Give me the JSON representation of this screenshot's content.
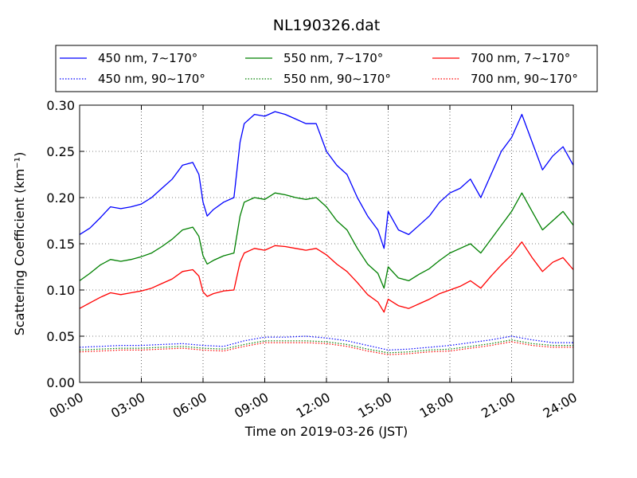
{
  "chart_data": {
    "type": "line",
    "title": "NL190326.dat",
    "xlabel": "Time on 2019-03-26 (JST)",
    "ylabel": "Scattering Coefficient (km⁻¹)",
    "x_ticks": [
      "00:00",
      "03:00",
      "06:00",
      "09:00",
      "12:00",
      "15:00",
      "18:00",
      "21:00",
      "24:00"
    ],
    "y_ticks": [
      "0.00",
      "0.05",
      "0.10",
      "0.15",
      "0.20",
      "0.25",
      "0.30"
    ],
    "xlim": [
      0,
      24
    ],
    "ylim": [
      0.0,
      0.3
    ],
    "x_unit": "hours",
    "grid": true,
    "legend_position": "top",
    "series": [
      {
        "name": "450 nm, 7∼170°",
        "color": "#0000ff",
        "linestyle": "solid",
        "x": [
          0,
          0.5,
          1,
          1.5,
          2,
          2.5,
          3,
          3.5,
          4,
          4.5,
          5,
          5.5,
          5.8,
          6,
          6.2,
          6.5,
          7,
          7.5,
          7.8,
          8,
          8.5,
          9,
          9.5,
          10,
          10.5,
          11,
          11.5,
          12,
          12.5,
          13,
          13.5,
          14,
          14.5,
          14.8,
          15,
          15.5,
          16,
          16.5,
          17,
          17.5,
          18,
          18.5,
          19,
          19.5,
          20,
          20.5,
          21,
          21.5,
          22,
          22.5,
          23,
          23.5,
          24
        ],
        "y": [
          0.16,
          0.167,
          0.178,
          0.19,
          0.188,
          0.19,
          0.193,
          0.2,
          0.21,
          0.22,
          0.235,
          0.238,
          0.225,
          0.195,
          0.18,
          0.187,
          0.195,
          0.2,
          0.26,
          0.28,
          0.29,
          0.288,
          0.293,
          0.29,
          0.285,
          0.28,
          0.28,
          0.25,
          0.235,
          0.225,
          0.2,
          0.18,
          0.165,
          0.145,
          0.185,
          0.165,
          0.16,
          0.17,
          0.18,
          0.195,
          0.205,
          0.21,
          0.22,
          0.2,
          0.225,
          0.25,
          0.265,
          0.29,
          0.26,
          0.23,
          0.245,
          0.255,
          0.235
        ]
      },
      {
        "name": "550 nm, 7∼170°",
        "color": "#008000",
        "linestyle": "solid",
        "x": [
          0,
          0.5,
          1,
          1.5,
          2,
          2.5,
          3,
          3.5,
          4,
          4.5,
          5,
          5.5,
          5.8,
          6,
          6.2,
          6.5,
          7,
          7.5,
          7.8,
          8,
          8.5,
          9,
          9.5,
          10,
          10.5,
          11,
          11.5,
          12,
          12.5,
          13,
          13.5,
          14,
          14.5,
          14.8,
          15,
          15.5,
          16,
          16.5,
          17,
          17.5,
          18,
          18.5,
          19,
          19.5,
          20,
          20.5,
          21,
          21.5,
          22,
          22.5,
          23,
          23.5,
          24
        ],
        "y": [
          0.11,
          0.118,
          0.127,
          0.133,
          0.131,
          0.133,
          0.136,
          0.14,
          0.147,
          0.155,
          0.165,
          0.168,
          0.158,
          0.137,
          0.128,
          0.132,
          0.137,
          0.14,
          0.18,
          0.195,
          0.2,
          0.198,
          0.205,
          0.203,
          0.2,
          0.198,
          0.2,
          0.19,
          0.175,
          0.165,
          0.145,
          0.128,
          0.118,
          0.102,
          0.125,
          0.113,
          0.11,
          0.117,
          0.123,
          0.132,
          0.14,
          0.145,
          0.15,
          0.14,
          0.155,
          0.17,
          0.185,
          0.205,
          0.185,
          0.165,
          0.175,
          0.185,
          0.17
        ]
      },
      {
        "name": "700 nm, 7∼170°",
        "color": "#ff0000",
        "linestyle": "solid",
        "x": [
          0,
          0.5,
          1,
          1.5,
          2,
          2.5,
          3,
          3.5,
          4,
          4.5,
          5,
          5.5,
          5.8,
          6,
          6.2,
          6.5,
          7,
          7.5,
          7.8,
          8,
          8.5,
          9,
          9.5,
          10,
          10.5,
          11,
          11.5,
          12,
          12.5,
          13,
          13.5,
          14,
          14.5,
          14.8,
          15,
          15.5,
          16,
          16.5,
          17,
          17.5,
          18,
          18.5,
          19,
          19.5,
          20,
          20.5,
          21,
          21.5,
          22,
          22.5,
          23,
          23.5,
          24
        ],
        "y": [
          0.08,
          0.086,
          0.092,
          0.097,
          0.095,
          0.097,
          0.099,
          0.102,
          0.107,
          0.112,
          0.12,
          0.122,
          0.115,
          0.098,
          0.093,
          0.096,
          0.099,
          0.1,
          0.13,
          0.14,
          0.145,
          0.143,
          0.148,
          0.147,
          0.145,
          0.143,
          0.145,
          0.138,
          0.128,
          0.12,
          0.108,
          0.095,
          0.087,
          0.076,
          0.09,
          0.083,
          0.08,
          0.085,
          0.09,
          0.096,
          0.1,
          0.104,
          0.11,
          0.102,
          0.115,
          0.127,
          0.138,
          0.152,
          0.135,
          0.12,
          0.13,
          0.135,
          0.122
        ]
      },
      {
        "name": "450 nm, 90∼170°",
        "color": "#0000ff",
        "linestyle": "dotted",
        "x": [
          0,
          1,
          2,
          3,
          4,
          5,
          6,
          7,
          8,
          9,
          10,
          11,
          12,
          13,
          14,
          15,
          16,
          17,
          18,
          19,
          20,
          21,
          22,
          23,
          24
        ],
        "y": [
          0.038,
          0.039,
          0.04,
          0.04,
          0.041,
          0.042,
          0.04,
          0.039,
          0.045,
          0.049,
          0.049,
          0.05,
          0.048,
          0.045,
          0.04,
          0.035,
          0.036,
          0.038,
          0.04,
          0.043,
          0.046,
          0.05,
          0.046,
          0.043,
          0.043
        ]
      },
      {
        "name": "550 nm, 90∼170°",
        "color": "#008000",
        "linestyle": "dotted",
        "x": [
          0,
          1,
          2,
          3,
          4,
          5,
          6,
          7,
          8,
          9,
          10,
          11,
          12,
          13,
          14,
          15,
          16,
          17,
          18,
          19,
          20,
          21,
          22,
          23,
          24
        ],
        "y": [
          0.035,
          0.036,
          0.037,
          0.037,
          0.038,
          0.039,
          0.037,
          0.036,
          0.041,
          0.045,
          0.045,
          0.045,
          0.044,
          0.041,
          0.036,
          0.032,
          0.033,
          0.035,
          0.036,
          0.039,
          0.042,
          0.046,
          0.042,
          0.04,
          0.04
        ]
      },
      {
        "name": "700 nm, 90∼170°",
        "color": "#ff0000",
        "linestyle": "dotted",
        "x": [
          0,
          1,
          2,
          3,
          4,
          5,
          6,
          7,
          8,
          9,
          10,
          11,
          12,
          13,
          14,
          15,
          16,
          17,
          18,
          19,
          20,
          21,
          22,
          23,
          24
        ],
        "y": [
          0.033,
          0.034,
          0.035,
          0.035,
          0.036,
          0.037,
          0.035,
          0.034,
          0.039,
          0.043,
          0.043,
          0.043,
          0.042,
          0.039,
          0.034,
          0.03,
          0.031,
          0.033,
          0.034,
          0.037,
          0.04,
          0.044,
          0.04,
          0.038,
          0.038
        ]
      }
    ]
  }
}
